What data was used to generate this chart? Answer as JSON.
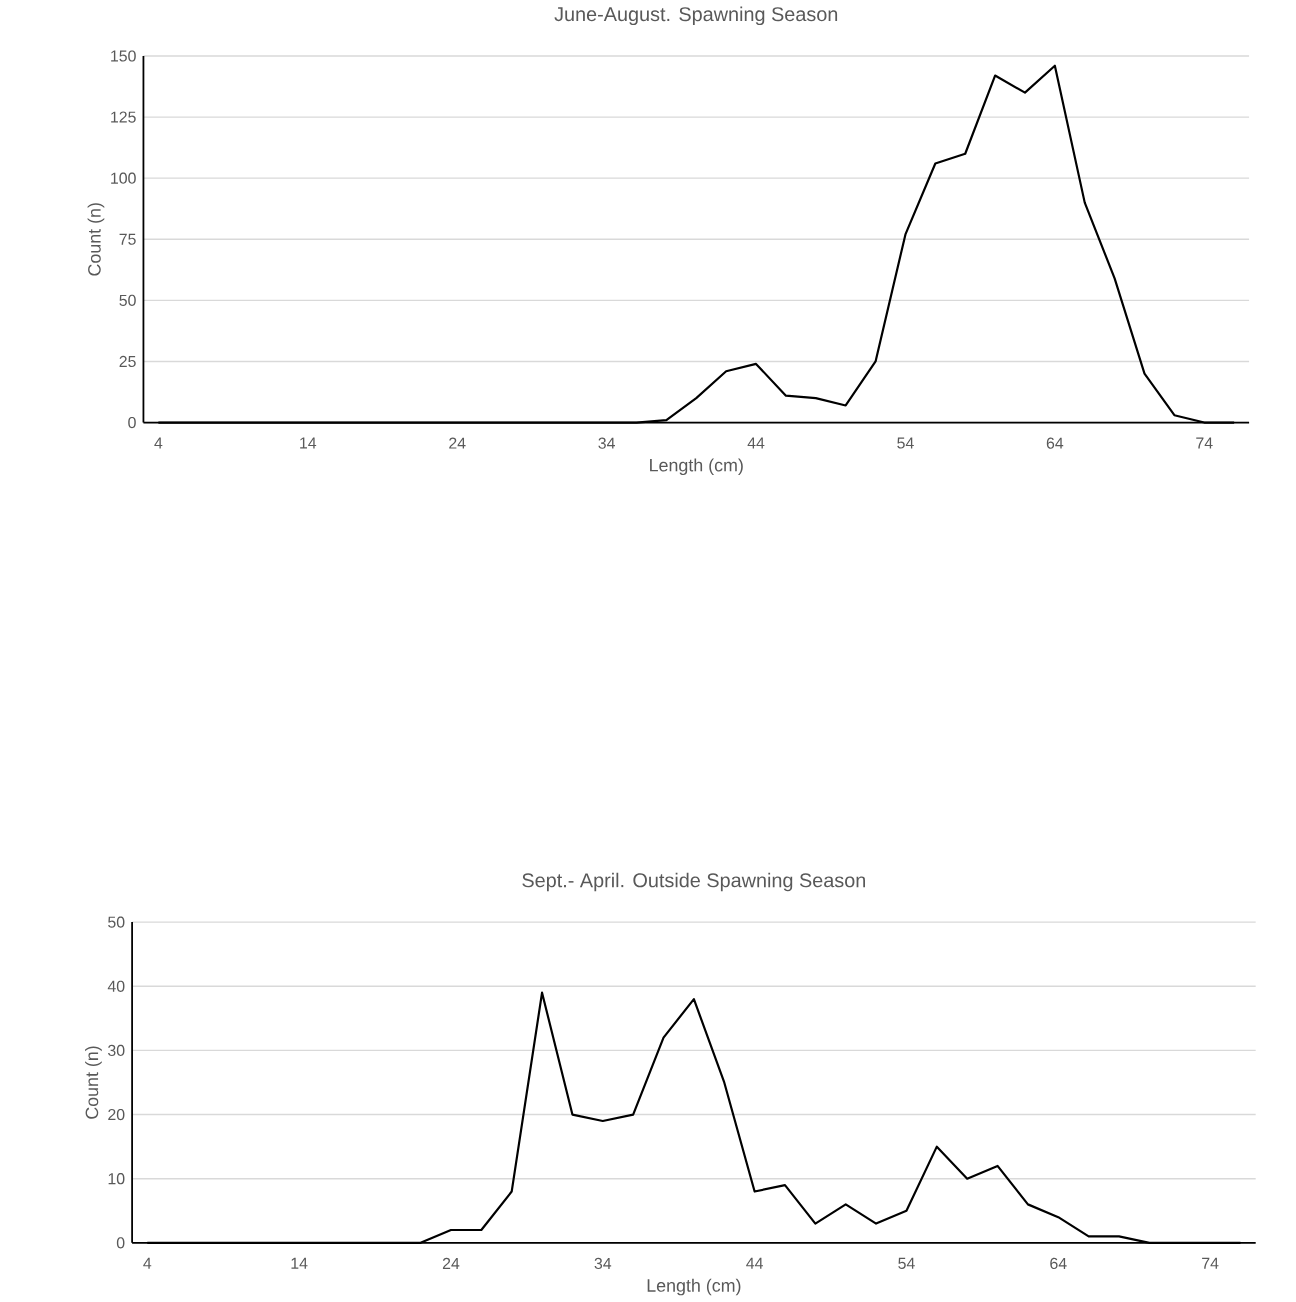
{
  "chart_data": [
    {
      "type": "line",
      "title": "June-August. Spawning Season",
      "xlabel": "Length  (cm)",
      "ylabel": "Count (n)",
      "x": [
        4,
        6,
        8,
        10,
        12,
        14,
        16,
        18,
        20,
        22,
        24,
        26,
        28,
        30,
        32,
        34,
        36,
        38,
        40,
        42,
        44,
        46,
        48,
        50,
        52,
        54,
        56,
        58,
        60,
        62,
        64,
        66,
        68,
        70,
        72,
        74,
        76
      ],
      "series": [
        {
          "color": "#000000",
          "values": [
            0,
            0,
            0,
            0,
            0,
            0,
            0,
            0,
            0,
            0,
            0,
            0,
            0,
            0,
            0,
            0,
            0,
            1,
            10,
            21,
            24,
            11,
            10,
            7,
            25,
            77,
            106,
            110,
            142,
            135,
            146,
            90,
            59,
            20,
            3,
            0,
            0
          ]
        }
      ],
      "xlim": [
        3,
        77
      ],
      "xticks": [
        4,
        14,
        24,
        34,
        44,
        54,
        64,
        74
      ],
      "ylim": [
        0,
        150
      ],
      "yticks": [
        0,
        25,
        50,
        75,
        100,
        125,
        150
      ],
      "grid": "y"
    },
    {
      "type": "line",
      "title": "Sept.- April. Outside Spawning Season",
      "xlabel": "Length  (cm)",
      "ylabel": "Count (n)",
      "x": [
        4,
        6,
        8,
        10,
        12,
        14,
        16,
        18,
        20,
        22,
        24,
        26,
        28,
        30,
        32,
        34,
        36,
        38,
        40,
        42,
        44,
        46,
        48,
        50,
        52,
        54,
        56,
        58,
        60,
        62,
        64,
        66,
        68,
        70,
        72,
        74,
        76
      ],
      "series": [
        {
          "color": "#000000",
          "values": [
            0,
            0,
            0,
            0,
            0,
            0,
            0,
            0,
            0,
            0,
            2,
            2,
            8,
            39,
            20,
            19,
            20,
            32,
            38,
            25,
            8,
            9,
            3,
            6,
            3,
            5,
            15,
            10,
            12,
            6,
            4,
            1,
            1,
            0,
            0,
            0,
            0
          ]
        }
      ],
      "xlim": [
        3,
        77
      ],
      "xticks": [
        4,
        14,
        24,
        34,
        44,
        54,
        64,
        74
      ],
      "ylim": [
        0,
        50
      ],
      "yticks": [
        0,
        10,
        20,
        30,
        40,
        50
      ],
      "grid": "y"
    }
  ]
}
